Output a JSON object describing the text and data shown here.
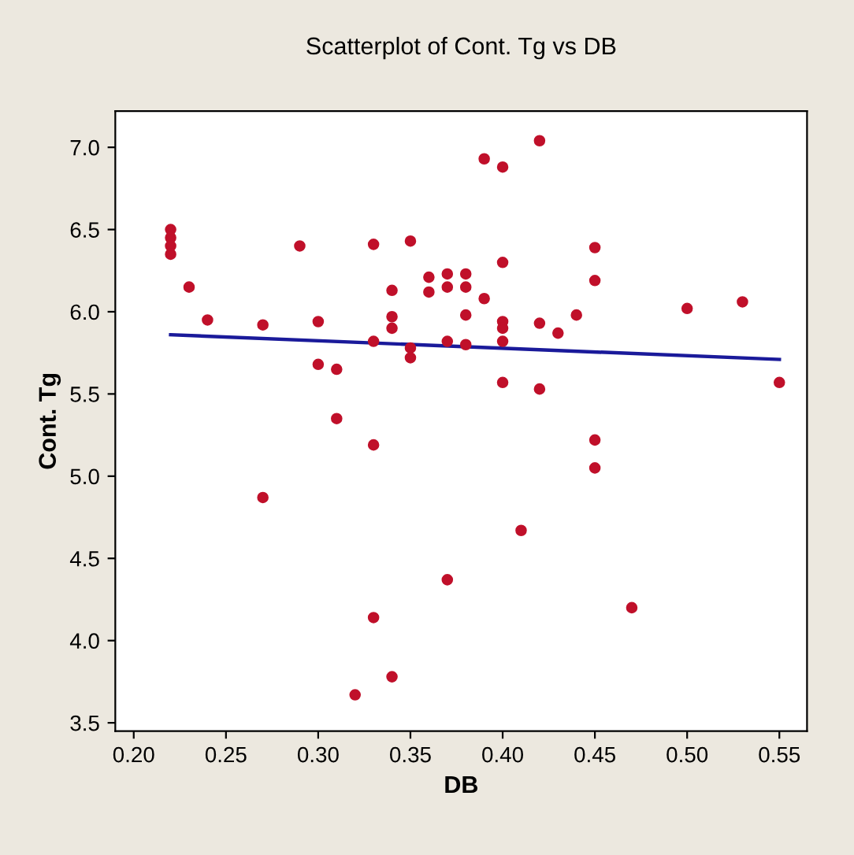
{
  "chart_data": {
    "type": "scatter",
    "title": "Scatterplot of Cont. Tg vs DB",
    "xlabel": "DB",
    "ylabel": "Cont. Tg",
    "xlim": [
      0.19,
      0.565
    ],
    "ylim": [
      3.45,
      7.22
    ],
    "xticks": [
      {
        "value": 0.2,
        "label": "0.20"
      },
      0.25,
      {
        "value": 0.3,
        "label": "0.30"
      },
      0.35,
      {
        "value": 0.4,
        "label": "0.40"
      },
      0.45,
      {
        "value": 0.5,
        "label": "0.50"
      },
      0.55
    ],
    "yticks": [
      3.5,
      {
        "value": 4,
        "label": "4.0"
      },
      4.5,
      {
        "value": 5,
        "label": "5.0"
      },
      5.5,
      {
        "value": 6,
        "label": "6.0"
      },
      6.5,
      {
        "value": 7,
        "label": "7.0"
      }
    ],
    "grid": false,
    "series": [
      {
        "marker": "circle",
        "color": "#c0102a",
        "x": [
          0.22,
          0.22,
          0.22,
          0.22,
          0.23,
          0.24,
          0.27,
          0.27,
          0.29,
          0.3,
          0.3,
          0.31,
          0.31,
          0.32,
          0.33,
          0.33,
          0.33,
          0.33,
          0.34,
          0.34,
          0.34,
          0.34,
          0.35,
          0.35,
          0.35,
          0.36,
          0.36,
          0.37,
          0.37,
          0.37,
          0.37,
          0.38,
          0.38,
          0.38,
          0.38,
          0.39,
          0.39,
          0.4,
          0.4,
          0.4,
          0.4,
          0.4,
          0.4,
          0.41,
          0.42,
          0.42,
          0.42,
          0.43,
          0.44,
          0.45,
          0.45,
          0.45,
          0.45,
          0.47,
          0.5,
          0.53,
          0.55
        ],
        "values": [
          6.5,
          6.45,
          6.4,
          6.35,
          6.15,
          5.95,
          5.92,
          4.87,
          6.4,
          5.94,
          5.68,
          5.65,
          5.35,
          3.67,
          6.41,
          5.82,
          5.19,
          4.14,
          6.13,
          5.97,
          5.9,
          3.78,
          6.43,
          5.78,
          5.72,
          6.21,
          6.12,
          6.23,
          6.15,
          5.82,
          4.37,
          6.23,
          6.15,
          5.98,
          5.8,
          6.93,
          6.08,
          6.88,
          6.3,
          5.94,
          5.9,
          5.82,
          5.57,
          4.67,
          7.04,
          5.93,
          5.53,
          5.87,
          5.98,
          6.39,
          6.19,
          5.22,
          5.05,
          4.2,
          6.02,
          6.06,
          5.57
        ]
      },
      {
        "type": "line",
        "marker": "none",
        "color": "#1a1a9a",
        "x": [
          0.22,
          0.55
        ],
        "values": [
          5.86,
          5.71
        ]
      }
    ]
  }
}
